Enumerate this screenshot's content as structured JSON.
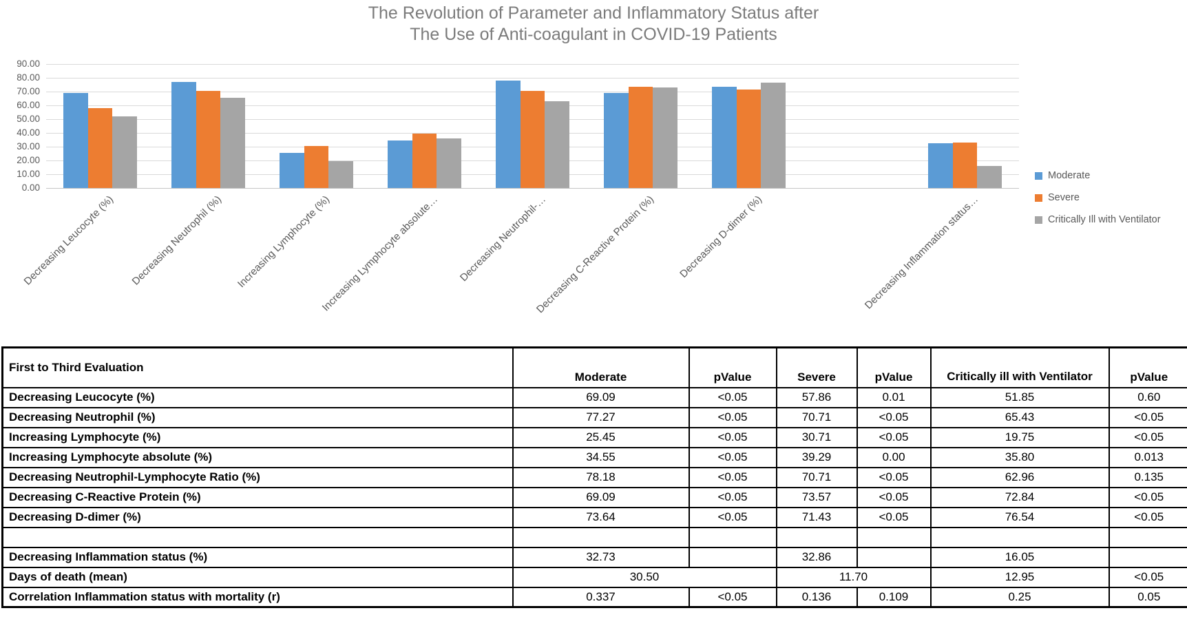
{
  "title": {
    "line1": "The Revolution of Parameter and Inflammatory Status after",
    "line2": "The Use of Anti-coagulant in COVID-19 Patients"
  },
  "chart_data": {
    "type": "bar",
    "title": "The Revolution of Parameter and Inflammatory Status after The Use of Anti-coagulant in COVID-19 Patients",
    "xlabel": "",
    "ylabel": "",
    "ylim": [
      0,
      90
    ],
    "ytick_step": 10,
    "yticks": [
      "90.00",
      "80.00",
      "70.00",
      "60.00",
      "50.00",
      "40.00",
      "30.00",
      "20.00",
      "10.00",
      "0.00"
    ],
    "grid": true,
    "legend_position": "right",
    "categories": [
      "Decreasing Leucocyte (%)",
      "Decreasing Neutrophil (%)",
      "Increasing Lymphocyte (%)",
      "Increasing Lymphocyte absolute…",
      "Decreasing Neutrophil-…",
      "Decreasing C-Reactive Protein (%)",
      "Decreasing D-dimer (%)",
      "",
      "Decreasing Inflammation status…"
    ],
    "series": [
      {
        "name": "Moderate",
        "color": "#5B9BD5",
        "values": [
          69.09,
          77.27,
          25.45,
          34.55,
          78.18,
          69.09,
          73.64,
          null,
          32.73
        ]
      },
      {
        "name": "Severe",
        "color": "#ED7D31",
        "values": [
          57.86,
          70.71,
          30.71,
          39.29,
          70.71,
          73.57,
          71.43,
          null,
          32.86
        ]
      },
      {
        "name": "Critically Ill with Ventilator",
        "color": "#A5A5A5",
        "values": [
          51.85,
          65.43,
          19.75,
          35.8,
          62.96,
          72.84,
          76.54,
          null,
          16.05
        ]
      }
    ]
  },
  "table": {
    "columns": [
      "First to Third Evaluation",
      "Moderate",
      "pValue",
      "Severe",
      "pValue",
      "Critically ill with Ventilator",
      "pValue"
    ],
    "rows": [
      {
        "label": "Decreasing Leucocyte (%)",
        "cells": [
          "69.09",
          "<0.05",
          "57.86",
          "0.01",
          "51.85",
          "0.60"
        ]
      },
      {
        "label": "Decreasing Neutrophil (%)",
        "cells": [
          "77.27",
          "<0.05",
          "70.71",
          "<0.05",
          "65.43",
          "<0.05"
        ]
      },
      {
        "label": "Increasing Lymphocyte (%)",
        "cells": [
          "25.45",
          "<0.05",
          "30.71",
          "<0.05",
          "19.75",
          "<0.05"
        ]
      },
      {
        "label": "Increasing Lymphocyte absolute (%)",
        "cells": [
          "34.55",
          "<0.05",
          "39.29",
          "0.00",
          "35.80",
          "0.013"
        ]
      },
      {
        "label": "Decreasing Neutrophil-Lymphocyte Ratio (%)",
        "cells": [
          "78.18",
          "<0.05",
          "70.71",
          "<0.05",
          "62.96",
          "0.135"
        ]
      },
      {
        "label": "Decreasing C-Reactive Protein (%)",
        "cells": [
          "69.09",
          "<0.05",
          "73.57",
          "<0.05",
          "72.84",
          "<0.05"
        ]
      },
      {
        "label": "Decreasing D-dimer (%)",
        "cells": [
          "73.64",
          "<0.05",
          "71.43",
          "<0.05",
          "76.54",
          "<0.05"
        ]
      },
      {
        "label": "",
        "cells": [
          "",
          "",
          "",
          "",
          "",
          ""
        ]
      },
      {
        "label": "Decreasing Inflammation status (%)",
        "cells": [
          "32.73",
          "",
          "32.86",
          "",
          "16.05",
          ""
        ]
      },
      {
        "label": "Days of death (mean)",
        "cells": [
          {
            "text": "30.50",
            "colspan": 2
          },
          {
            "text": "11.70",
            "colspan": 2
          },
          "12.95",
          "<0.05"
        ]
      },
      {
        "label": "Correlation Inflammation status with mortality (r)",
        "cells": [
          "0.337",
          "<0.05",
          "0.136",
          "0.109",
          "0.25",
          "0.05"
        ]
      }
    ]
  },
  "colors": {
    "moderate": "#5B9BD5",
    "severe": "#ED7D31",
    "critical": "#A5A5A5",
    "gridline": "#D9D9D9",
    "axis_text": "#595959",
    "title_text": "#7B7B7B"
  }
}
